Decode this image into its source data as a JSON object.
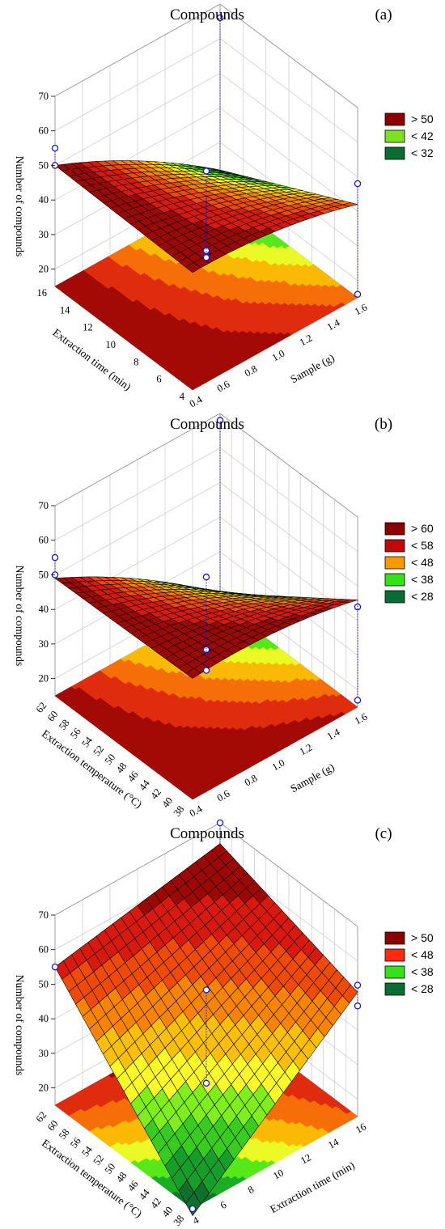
{
  "chart_data": [
    {
      "type": "surface3d",
      "panel_label": "(a)",
      "title": "Compounds",
      "zlabel": "Number of compounds",
      "xlabel": "Sample (g)",
      "ylabel": "Extraction time (min)",
      "x_ticks": [
        "0.4",
        "0.6",
        "0.8",
        "1.0",
        "1.2",
        "1.4",
        "1.6"
      ],
      "y_ticks": [
        "4",
        "6",
        "8",
        "10",
        "12",
        "14",
        "16"
      ],
      "z_ticks": [
        "20",
        "30",
        "40",
        "50",
        "60",
        "70"
      ],
      "xlim": [
        0.4,
        1.6
      ],
      "ylim": [
        4,
        16
      ],
      "zlim": [
        15,
        70
      ],
      "surface_corners": {
        "x_low_y_low": 49,
        "x_high_y_low": 42,
        "x_low_y_high": 50,
        "x_high_y_high": 22
      },
      "curvature_x": 8,
      "legend": [
        "> 50",
        "< 42",
        "< 32"
      ],
      "legend_colors": [
        "#8b0000",
        "#7fe022",
        "#0a6b33"
      ],
      "points": [
        {
          "x": 0.4,
          "y": 16,
          "z": 55
        },
        {
          "x": 0.4,
          "y": 16,
          "z": 50
        },
        {
          "x": 1.0,
          "y": 10,
          "z": 27
        },
        {
          "x": 1.0,
          "y": 10,
          "z": 25
        },
        {
          "x": 1.0,
          "y": 10,
          "z": 50
        },
        {
          "x": 1.6,
          "y": 16,
          "z": 66
        },
        {
          "x": 1.6,
          "y": 4,
          "z": 48
        },
        {
          "x": 1.6,
          "y": 4,
          "z": 16
        }
      ]
    },
    {
      "type": "surface3d",
      "panel_label": "(b)",
      "title": "Compounds",
      "zlabel": "Number of compounds",
      "xlabel": "Sample (g)",
      "ylabel": "Extraction temperature (°C)",
      "x_ticks": [
        "0.4",
        "0.6",
        "0.8",
        "1.0",
        "1.2",
        "1.4",
        "1.6"
      ],
      "y_ticks": [
        "38",
        "40",
        "42",
        "44",
        "46",
        "48",
        "50",
        "52",
        "54",
        "56",
        "58",
        "60",
        "62"
      ],
      "z_ticks": [
        "20",
        "30",
        "40",
        "50",
        "60",
        "70"
      ],
      "xlim": [
        0.4,
        1.6
      ],
      "ylim": [
        38,
        62
      ],
      "zlim": [
        15,
        70
      ],
      "surface_corners": {
        "x_low_y_low": 50,
        "x_high_y_low": 46,
        "x_low_y_high": 49,
        "x_high_y_high": 18
      },
      "curvature_x": 8,
      "legend": [
        "> 60",
        "< 58",
        "< 48",
        "< 38",
        "< 28"
      ],
      "legend_colors": [
        "#8b0000",
        "#c00a0a",
        "#f59a00",
        "#36e01a",
        "#0a6b33"
      ],
      "points": [
        {
          "x": 0.4,
          "y": 62,
          "z": 55
        },
        {
          "x": 0.4,
          "y": 62,
          "z": 50
        },
        {
          "x": 1.0,
          "y": 50,
          "z": 30
        },
        {
          "x": 1.0,
          "y": 50,
          "z": 24
        },
        {
          "x": 1.0,
          "y": 50,
          "z": 51
        },
        {
          "x": 1.6,
          "y": 62,
          "z": 68
        },
        {
          "x": 1.6,
          "y": 38,
          "z": 44
        },
        {
          "x": 1.6,
          "y": 38,
          "z": 17
        }
      ]
    },
    {
      "type": "surface3d",
      "panel_label": "(c)",
      "title": "Compounds",
      "zlabel": "Number of compounds",
      "xlabel": "Extraction time (min)",
      "ylabel": "Extraction temperature (°C)",
      "x_ticks": [
        "4",
        "6",
        "8",
        "10",
        "12",
        "14",
        "16"
      ],
      "y_ticks": [
        "38",
        "40",
        "42",
        "44",
        "46",
        "48",
        "50",
        "52",
        "54",
        "56",
        "58",
        "60",
        "62"
      ],
      "z_ticks": [
        "20",
        "30",
        "40",
        "50",
        "60",
        "70"
      ],
      "xlim": [
        4,
        16
      ],
      "ylim": [
        38,
        62
      ],
      "zlim": [
        15,
        70
      ],
      "surface_corners": {
        "x_low_y_low": 13,
        "x_high_y_low": 51,
        "x_low_y_high": 55,
        "x_high_y_high": 64
      },
      "curvature_x": 0,
      "legend": [
        "> 50",
        "< 48",
        "< 38",
        "< 28"
      ],
      "legend_colors": [
        "#8b0000",
        "#ff2a10",
        "#36e01a",
        "#0a6b33"
      ],
      "points": [
        {
          "x": 4,
          "y": 62,
          "z": 55
        },
        {
          "x": 10,
          "y": 50,
          "z": 50
        },
        {
          "x": 10,
          "y": 50,
          "z": 23
        },
        {
          "x": 4,
          "y": 38,
          "z": 15
        },
        {
          "x": 16,
          "y": 62,
          "z": 70
        },
        {
          "x": 16,
          "y": 38,
          "z": 53
        },
        {
          "x": 16,
          "y": 38,
          "z": 47
        }
      ]
    }
  ]
}
